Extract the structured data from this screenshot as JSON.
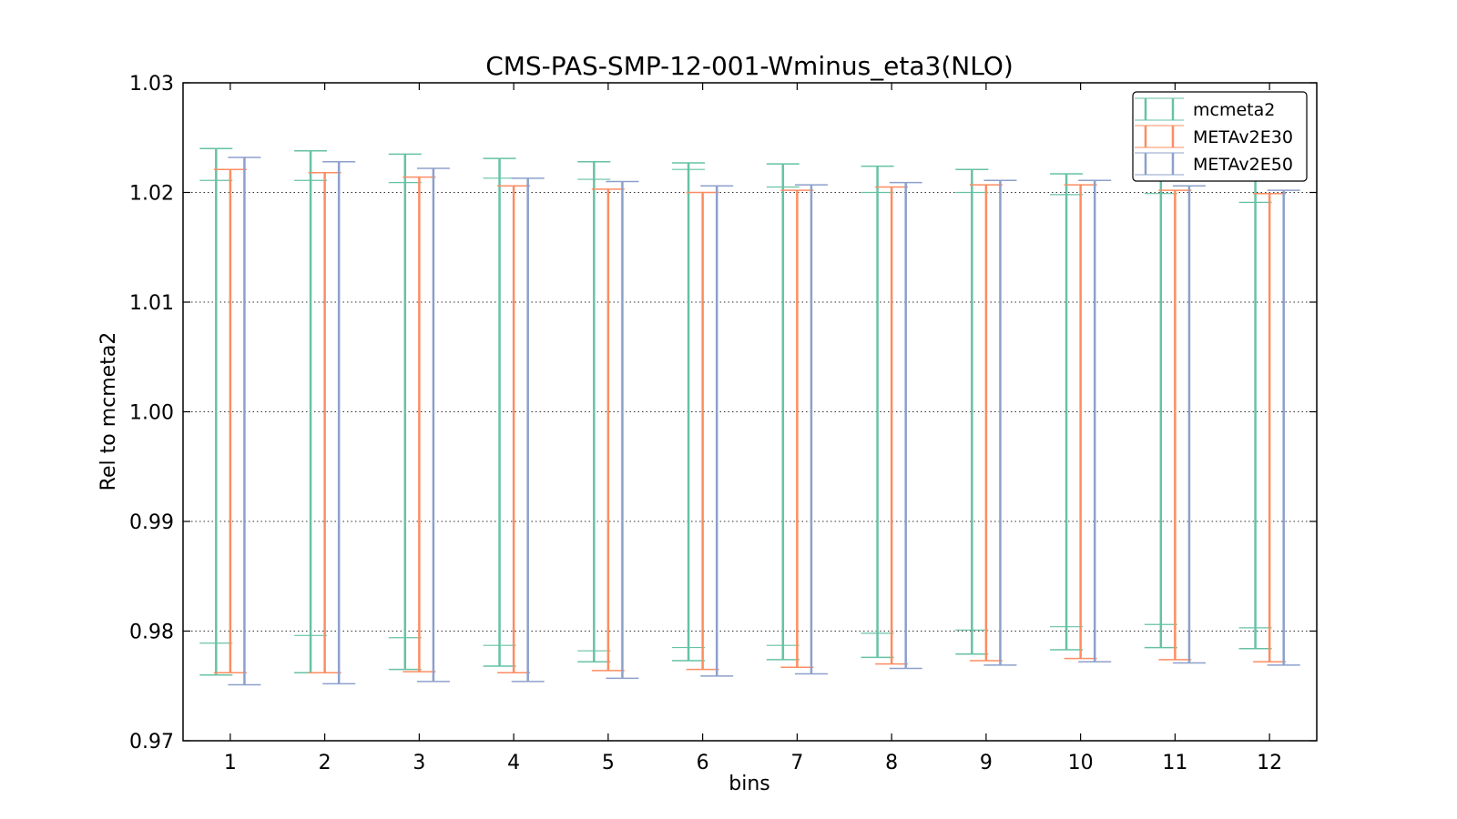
{
  "chart_data": {
    "type": "errorbar",
    "title": "CMS-PAS-SMP-12-001-Wminus_eta3(NLO)",
    "xlabel": "bins",
    "ylabel": "Rel to mcmeta2",
    "categories": [
      "1",
      "2",
      "3",
      "4",
      "5",
      "6",
      "7",
      "8",
      "9",
      "10",
      "11",
      "12"
    ],
    "xlim": [
      0.5,
      12.5
    ],
    "ylim": [
      0.97,
      1.03
    ],
    "yticks": [
      "0.97",
      "0.98",
      "0.99",
      "1.00",
      "1.01",
      "1.02",
      "1.03"
    ],
    "grid": "horizontal dotted",
    "legend_position": "top-right",
    "series": [
      {
        "name": "mcmeta2",
        "color": "#66c2a5",
        "inner_caps": true,
        "low": [
          0.976,
          0.9762,
          0.9765,
          0.9768,
          0.9772,
          0.9773,
          0.9774,
          0.9776,
          0.9779,
          0.9783,
          0.9785,
          0.9784
        ],
        "high": [
          1.024,
          1.0238,
          1.0235,
          1.0231,
          1.0228,
          1.0227,
          1.0226,
          1.0224,
          1.0221,
          1.0217,
          1.0215,
          1.0216
        ],
        "inner_low": [
          0.9789,
          0.9796,
          0.9794,
          0.9787,
          0.9782,
          0.9785,
          0.9787,
          0.9798,
          0.9801,
          0.9804,
          0.9806,
          0.9803
        ],
        "inner_high": [
          1.0211,
          1.0211,
          1.0209,
          1.0213,
          1.0212,
          1.0221,
          1.0205,
          1.02,
          1.02,
          1.0198,
          1.0199,
          1.0191
        ]
      },
      {
        "name": "METAv2E30",
        "color": "#fc8d62",
        "low": [
          0.9762,
          0.9762,
          0.9763,
          0.9762,
          0.9764,
          0.9765,
          0.9767,
          0.977,
          0.9773,
          0.9775,
          0.9774,
          0.9772
        ],
        "high": [
          1.0221,
          1.0218,
          1.0214,
          1.0206,
          1.0203,
          1.02,
          1.0202,
          1.0205,
          1.0207,
          1.0207,
          1.0202,
          1.0199
        ]
      },
      {
        "name": "METAv2E50",
        "color": "#8da0cb",
        "low": [
          0.9751,
          0.9752,
          0.9754,
          0.9754,
          0.9757,
          0.9759,
          0.9761,
          0.9766,
          0.9769,
          0.9772,
          0.9771,
          0.9769
        ],
        "high": [
          1.0232,
          1.0228,
          1.0222,
          1.0213,
          1.021,
          1.0206,
          1.0207,
          1.0209,
          1.0211,
          1.0211,
          1.0206,
          1.0202
        ]
      }
    ]
  }
}
